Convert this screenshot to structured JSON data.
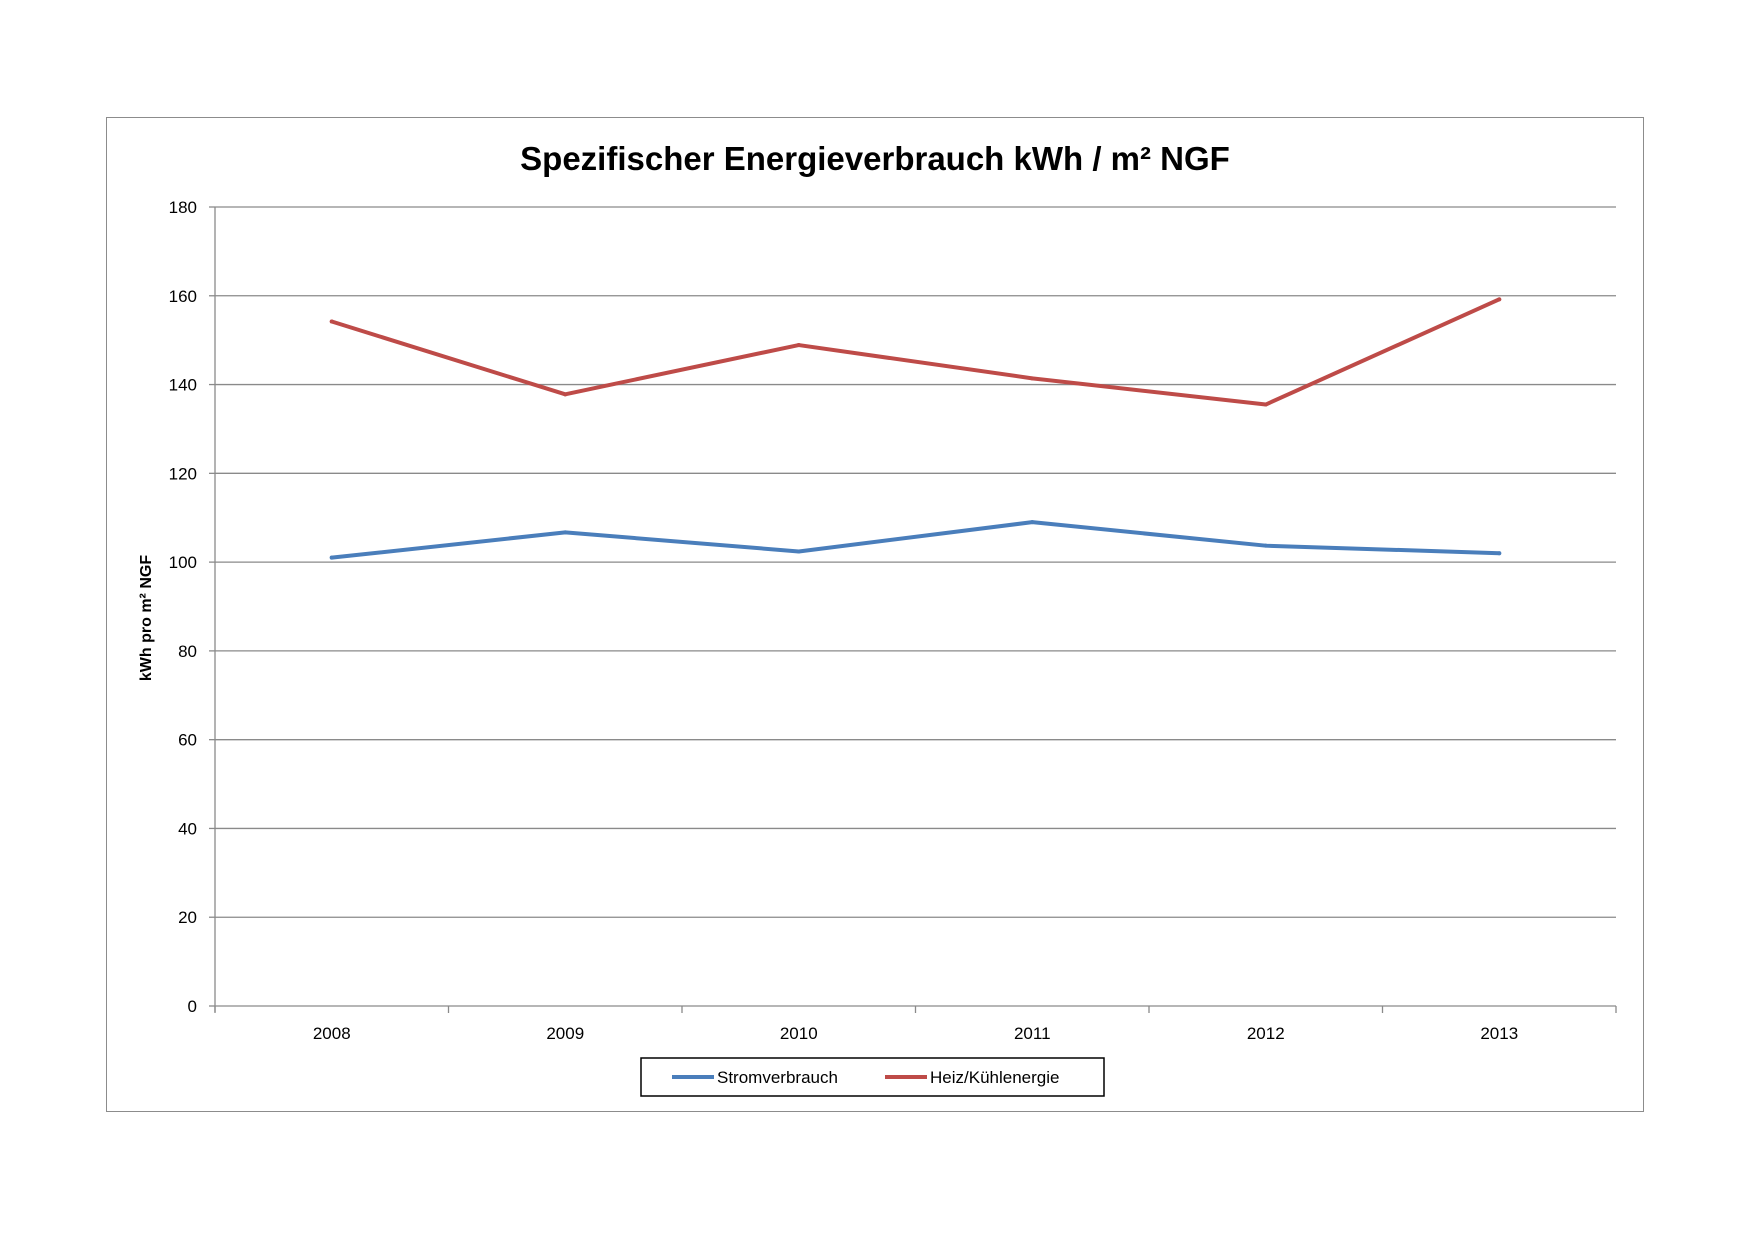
{
  "chart_data": {
    "type": "line",
    "title": "Spezifischer Energieverbrauch kWh / m² NGF",
    "xlabel": "",
    "ylabel": "kWh pro m² NGF",
    "categories": [
      "2008",
      "2009",
      "2010",
      "2011",
      "2012",
      "2013"
    ],
    "ylim": [
      0,
      180
    ],
    "yticks": [
      0,
      20,
      40,
      60,
      80,
      100,
      120,
      140,
      160,
      180
    ],
    "grid": true,
    "legend_position": "bottom",
    "series": [
      {
        "name": "Stromverbrauch",
        "color": "#4a7ebb",
        "values": [
          101,
          106.7,
          102.4,
          109,
          103.7,
          102
        ]
      },
      {
        "name": "Heiz/Kühlenergie",
        "color": "#be4b48",
        "values": [
          154.2,
          137.8,
          148.9,
          141.4,
          135.5,
          159.2
        ]
      }
    ]
  }
}
